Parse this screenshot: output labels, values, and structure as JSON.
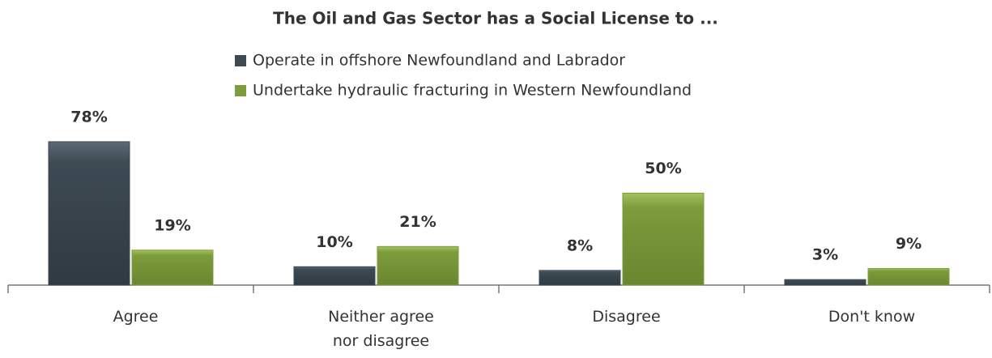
{
  "chart_data": {
    "type": "bar",
    "title": "The Oil and Gas Sector has a Social License to ...",
    "categories": [
      "Agree",
      "Neither agree nor disagree",
      "Disagree",
      "Don't know"
    ],
    "series": [
      {
        "name": "Operate in offshore Newfoundland and Labrador",
        "color": "#3e4a53",
        "values": [
          78,
          10,
          8,
          3
        ],
        "value_labels": [
          "78%",
          "10%",
          "8%",
          "3%"
        ]
      },
      {
        "name": "Undertake hydraulic fracturing in Western Newfoundland",
        "color": "#7d9c3b",
        "values": [
          19,
          21,
          50,
          9
        ],
        "value_labels": [
          "19%",
          "21%",
          "50%",
          "9%"
        ]
      }
    ],
    "legend": "top"
  }
}
